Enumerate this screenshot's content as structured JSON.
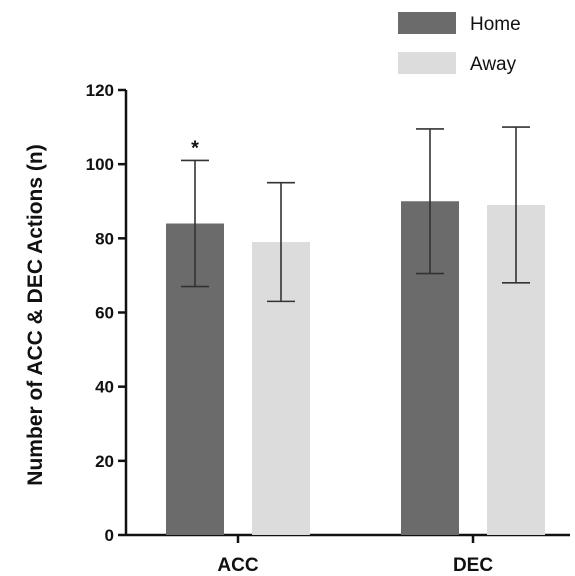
{
  "chart_data": {
    "type": "bar",
    "categories": [
      "ACC",
      "DEC"
    ],
    "series": [
      {
        "name": "Home",
        "values": [
          84,
          90
        ],
        "error": [
          17,
          19.5
        ],
        "color": "#6b6b6b"
      },
      {
        "name": "Away",
        "values": [
          79,
          89
        ],
        "error": [
          16,
          21
        ],
        "color": "#dcdcdc"
      }
    ],
    "ylabel": "Number of ACC & DEC Actions (n)",
    "xlabel": "",
    "ylim": [
      0,
      120
    ],
    "yticks": [
      "0",
      "20",
      "40",
      "60",
      "80",
      "100",
      "120"
    ],
    "annotations": [
      {
        "category": "ACC",
        "series": "Home",
        "text": "*"
      }
    ],
    "legend_position": "top-right",
    "grid": false
  }
}
